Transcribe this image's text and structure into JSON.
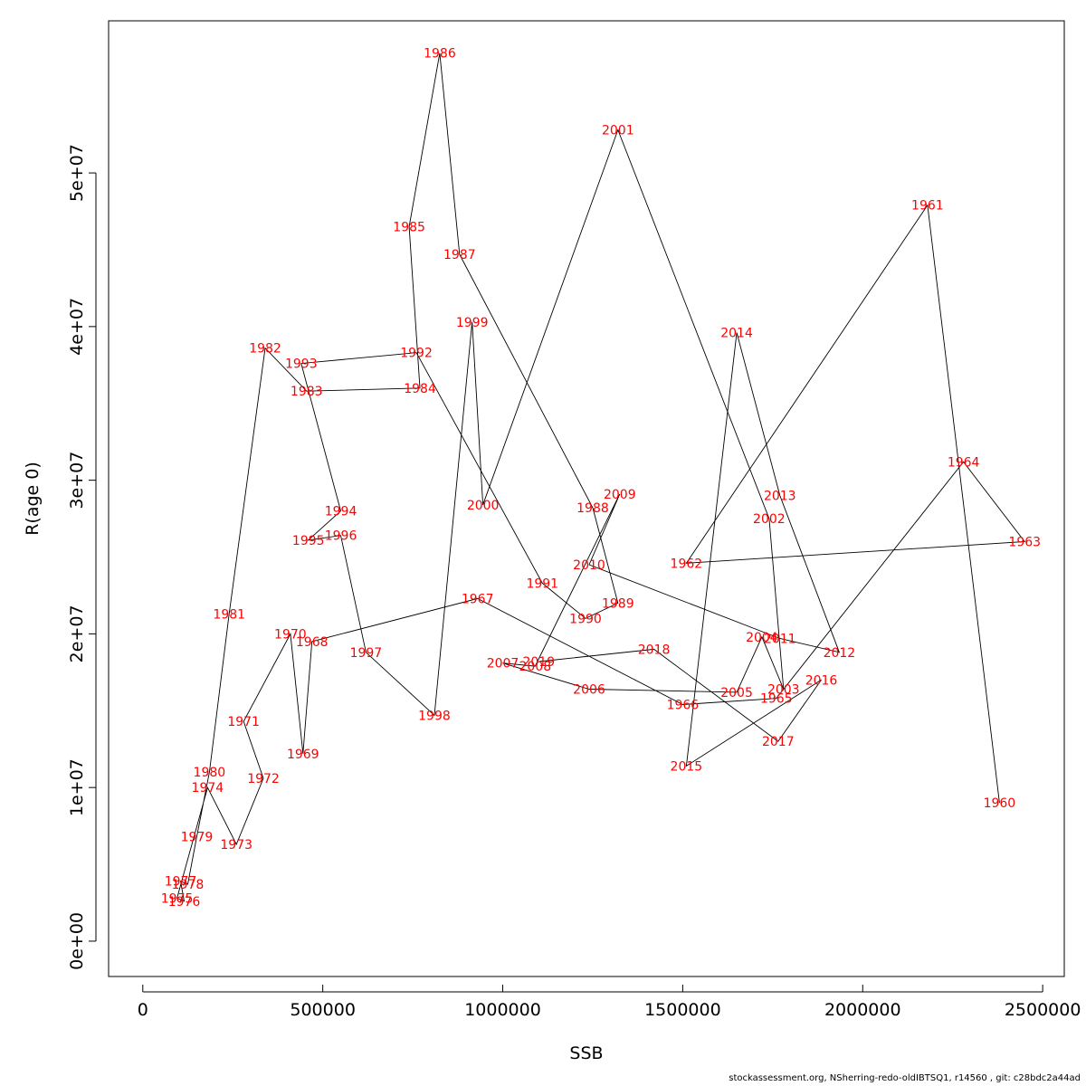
{
  "chart_data": {
    "type": "line",
    "xlabel": "SSB",
    "ylabel": "R(age 0)",
    "xlim": [
      -95000,
      2560000
    ],
    "ylim": [
      -2300000,
      59900000
    ],
    "x_ticks": [
      0,
      500000,
      1000000,
      1500000,
      2000000,
      2500000
    ],
    "x_tick_labels": [
      "0",
      "500000",
      "1000000",
      "1500000",
      "2000000",
      "2500000"
    ],
    "y_ticks": [
      0,
      10000000,
      20000000,
      30000000,
      40000000,
      50000000
    ],
    "y_tick_labels": [
      "0e+00",
      "1e+07",
      "2e+07",
      "3e+07",
      "4e+07",
      "5e+07"
    ],
    "grid": false,
    "legend": "none",
    "line_color": "#000000",
    "label_color": "#ff0000",
    "points": [
      {
        "label": "1960",
        "x": 2380000,
        "y": 9000000
      },
      {
        "label": "1961",
        "x": 2180000,
        "y": 47900000
      },
      {
        "label": "1962",
        "x": 1510000,
        "y": 24600000
      },
      {
        "label": "1963",
        "x": 2450000,
        "y": 26000000
      },
      {
        "label": "1964",
        "x": 2280000,
        "y": 31200000
      },
      {
        "label": "1965",
        "x": 1760000,
        "y": 15800000
      },
      {
        "label": "1966",
        "x": 1500000,
        "y": 15400000
      },
      {
        "label": "1967",
        "x": 930000,
        "y": 22300000
      },
      {
        "label": "1968",
        "x": 470000,
        "y": 19500000
      },
      {
        "label": "1969",
        "x": 445000,
        "y": 12200000
      },
      {
        "label": "1970",
        "x": 410000,
        "y": 20000000
      },
      {
        "label": "1971",
        "x": 280000,
        "y": 14300000
      },
      {
        "label": "1972",
        "x": 335000,
        "y": 10600000
      },
      {
        "label": "1973",
        "x": 260000,
        "y": 6300000
      },
      {
        "label": "1974",
        "x": 180000,
        "y": 10000000
      },
      {
        "label": "1975",
        "x": 95000,
        "y": 2800000
      },
      {
        "label": "1976",
        "x": 115000,
        "y": 2600000
      },
      {
        "label": "1977",
        "x": 105000,
        "y": 3900000
      },
      {
        "label": "1978",
        "x": 125000,
        "y": 3700000
      },
      {
        "label": "1979",
        "x": 150000,
        "y": 6800000
      },
      {
        "label": "1980",
        "x": 185000,
        "y": 11000000
      },
      {
        "label": "1981",
        "x": 240000,
        "y": 21300000
      },
      {
        "label": "1982",
        "x": 340000,
        "y": 38600000
      },
      {
        "label": "1983",
        "x": 455000,
        "y": 35800000
      },
      {
        "label": "1984",
        "x": 770000,
        "y": 36000000
      },
      {
        "label": "1985",
        "x": 740000,
        "y": 46500000
      },
      {
        "label": "1986",
        "x": 825000,
        "y": 57800000
      },
      {
        "label": "1987",
        "x": 880000,
        "y": 44700000
      },
      {
        "label": "1988",
        "x": 1250000,
        "y": 28200000
      },
      {
        "label": "1989",
        "x": 1320000,
        "y": 22000000
      },
      {
        "label": "1990",
        "x": 1230000,
        "y": 21000000
      },
      {
        "label": "1991",
        "x": 1110000,
        "y": 23300000
      },
      {
        "label": "1992",
        "x": 760000,
        "y": 38300000
      },
      {
        "label": "1993",
        "x": 440000,
        "y": 37600000
      },
      {
        "label": "1994",
        "x": 550000,
        "y": 28000000
      },
      {
        "label": "1995",
        "x": 460000,
        "y": 26100000
      },
      {
        "label": "1996",
        "x": 550000,
        "y": 26400000
      },
      {
        "label": "1997",
        "x": 620000,
        "y": 18800000
      },
      {
        "label": "1998",
        "x": 810000,
        "y": 14700000
      },
      {
        "label": "1999",
        "x": 915000,
        "y": 40300000
      },
      {
        "label": "2000",
        "x": 945000,
        "y": 28400000
      },
      {
        "label": "2001",
        "x": 1320000,
        "y": 52800000
      },
      {
        "label": "2002",
        "x": 1740000,
        "y": 27500000
      },
      {
        "label": "2003",
        "x": 1780000,
        "y": 16400000
      },
      {
        "label": "2004",
        "x": 1720000,
        "y": 19800000
      },
      {
        "label": "2005",
        "x": 1650000,
        "y": 16200000
      },
      {
        "label": "2006",
        "x": 1240000,
        "y": 16400000
      },
      {
        "label": "2007",
        "x": 1000000,
        "y": 18100000
      },
      {
        "label": "2008",
        "x": 1090000,
        "y": 17900000
      },
      {
        "label": "2009",
        "x": 1325000,
        "y": 29100000
      },
      {
        "label": "2010",
        "x": 1240000,
        "y": 24500000
      },
      {
        "label": "2011",
        "x": 1770000,
        "y": 19700000
      },
      {
        "label": "2012",
        "x": 1935000,
        "y": 18800000
      },
      {
        "label": "2013",
        "x": 1770000,
        "y": 29000000
      },
      {
        "label": "2014",
        "x": 1650000,
        "y": 39600000
      },
      {
        "label": "2015",
        "x": 1510000,
        "y": 11400000
      },
      {
        "label": "2016",
        "x": 1885000,
        "y": 17000000
      },
      {
        "label": "2017",
        "x": 1765000,
        "y": 13000000
      },
      {
        "label": "2018",
        "x": 1420000,
        "y": 19000000
      },
      {
        "label": "2019",
        "x": 1100000,
        "y": 18200000
      }
    ]
  },
  "footer": "stockassessment.org, NSherring-redo-oldIBTSQ1, r14560 , git: c28bdc2a44ad"
}
